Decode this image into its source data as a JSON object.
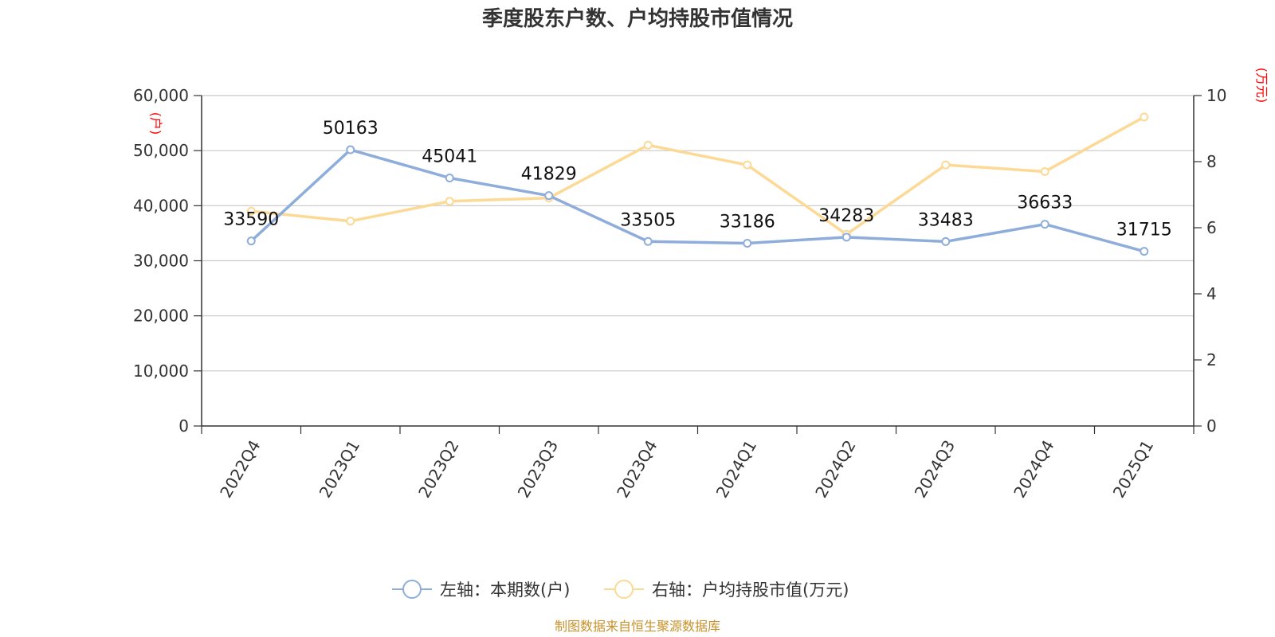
{
  "chart_data": {
    "type": "line",
    "title": "季度股东户数、户均持股市值情况",
    "categories": [
      "2022Q4",
      "2023Q1",
      "2023Q2",
      "2023Q3",
      "2023Q4",
      "2024Q1",
      "2024Q2",
      "2024Q3",
      "2024Q4",
      "2025Q1"
    ],
    "left_axis": {
      "unit": "(户)",
      "min": 0,
      "max": 60000,
      "ticks": [
        "0",
        "10,000",
        "20,000",
        "30,000",
        "40,000",
        "50,000",
        "60,000"
      ]
    },
    "right_axis": {
      "unit": "(万元)",
      "min": 0,
      "max": 10,
      "ticks": [
        "0",
        "2",
        "4",
        "6",
        "8",
        "10"
      ]
    },
    "series": [
      {
        "name": "左轴：本期数(户)",
        "axis": "left",
        "color": "#8eaddb",
        "values": [
          33590,
          50163,
          45041,
          41829,
          33505,
          33186,
          34283,
          33483,
          36633,
          31715
        ],
        "labels": [
          "33590",
          "50163",
          "45041",
          "41829",
          "33505",
          "33186",
          "34283",
          "33483",
          "36633",
          "31715"
        ]
      },
      {
        "name": "右轴：户均持股市值(万元)",
        "axis": "right",
        "color": "#fcd995",
        "values": [
          6.5,
          6.2,
          6.8,
          6.9,
          8.5,
          7.9,
          5.8,
          7.9,
          7.7,
          9.35
        ]
      }
    ],
    "grid": true,
    "legend_position": "bottom"
  },
  "source": "制图数据来自恒生聚源数据库"
}
